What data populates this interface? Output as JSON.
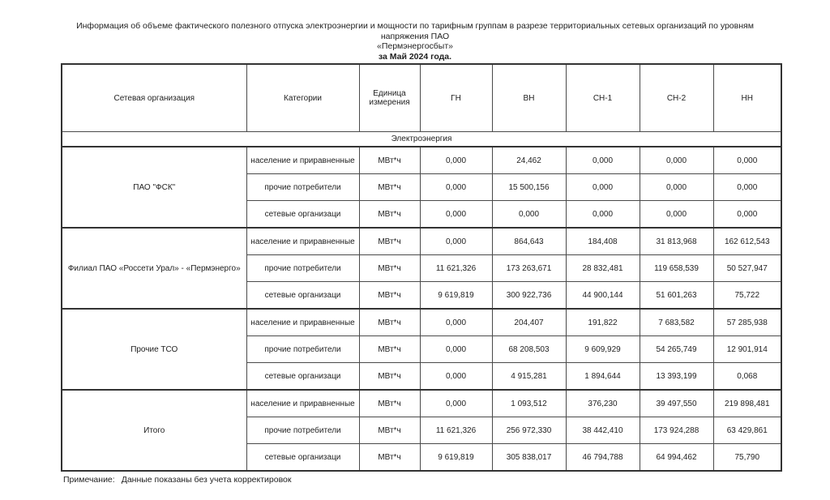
{
  "title": {
    "line1": "Информация об объеме фактического полезного отпуска электроэнергии и мощности по тарифным группам в разрезе территориальных сетевых организаций по уровням напряжения ПАО",
    "line2": "«Пермэнергосбыт»",
    "line3": "за Май 2024 года."
  },
  "table": {
    "columns": [
      "Сетевая организация",
      "Категории",
      "Единица измерения",
      "ГН",
      "ВН",
      "СН-1",
      "СН-2",
      "НН"
    ],
    "section": "Электроэнергия",
    "groups": [
      {
        "org": "ПАО \"ФСК\"",
        "rows": [
          {
            "category": "население и приравненные",
            "unit": "МВт*ч",
            "values": [
              "0,000",
              "24,462",
              "0,000",
              "0,000",
              "0,000"
            ]
          },
          {
            "category": "прочие потребители",
            "unit": "МВт*ч",
            "values": [
              "0,000",
              "15 500,156",
              "0,000",
              "0,000",
              "0,000"
            ]
          },
          {
            "category": "сетевые организаци",
            "unit": "МВт*ч",
            "values": [
              "0,000",
              "0,000",
              "0,000",
              "0,000",
              "0,000"
            ]
          }
        ]
      },
      {
        "org": "Филиал ПАО «Россети Урал» - «Пермэнерго»",
        "rows": [
          {
            "category": "население и приравненные",
            "unit": "МВт*ч",
            "values": [
              "0,000",
              "864,643",
              "184,408",
              "31 813,968",
              "162 612,543"
            ]
          },
          {
            "category": "прочие потребители",
            "unit": "МВт*ч",
            "values": [
              "11 621,326",
              "173 263,671",
              "28 832,481",
              "119 658,539",
              "50 527,947"
            ]
          },
          {
            "category": "сетевые организаци",
            "unit": "МВт*ч",
            "values": [
              "9 619,819",
              "300 922,736",
              "44 900,144",
              "51 601,263",
              "75,722"
            ]
          }
        ]
      },
      {
        "org": "Прочие ТСО",
        "rows": [
          {
            "category": "население и приравненные",
            "unit": "МВт*ч",
            "values": [
              "0,000",
              "204,407",
              "191,822",
              "7 683,582",
              "57 285,938"
            ]
          },
          {
            "category": "прочие потребители",
            "unit": "МВт*ч",
            "values": [
              "0,000",
              "68 208,503",
              "9 609,929",
              "54 265,749",
              "12 901,914"
            ]
          },
          {
            "category": "сетевые организаци",
            "unit": "МВт*ч",
            "values": [
              "0,000",
              "4 915,281",
              "1 894,644",
              "13 393,199",
              "0,068"
            ]
          }
        ]
      },
      {
        "org": "Итого",
        "rows": [
          {
            "category": "население и приравненные",
            "unit": "МВт*ч",
            "values": [
              "0,000",
              "1 093,512",
              "376,230",
              "39 497,550",
              "219 898,481"
            ]
          },
          {
            "category": "прочие потребители",
            "unit": "МВт*ч",
            "values": [
              "11 621,326",
              "256 972,330",
              "38 442,410",
              "173 924,288",
              "63 429,861"
            ]
          },
          {
            "category": "сетевые организаци",
            "unit": "МВт*ч",
            "values": [
              "9 619,819",
              "305 838,017",
              "46 794,788",
              "64 994,462",
              "75,790"
            ]
          }
        ]
      }
    ]
  },
  "note": {
    "label": "Примечание:",
    "text": "Данные показаны без учета корректировок"
  }
}
